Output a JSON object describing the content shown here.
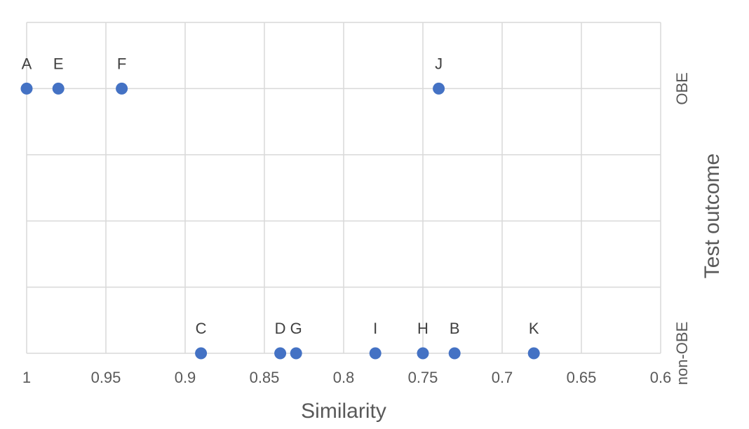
{
  "chart_data": {
    "type": "scatter",
    "title": "",
    "xlabel": "Similarity",
    "ylabel": "Test outcome",
    "xlim": [
      0.6,
      1.0
    ],
    "x_reversed": true,
    "x_ticks": [
      1.0,
      0.95,
      0.9,
      0.85,
      0.8,
      0.75,
      0.7,
      0.65,
      0.6
    ],
    "x_tick_labels": [
      "1",
      "0.95",
      "0.9",
      "0.85",
      "0.8",
      "0.75",
      "0.7",
      "0.65",
      "0.6"
    ],
    "y_categories": [
      "non-OBE",
      "OBE"
    ],
    "y_category_positions": [
      0,
      1
    ],
    "ylim": [
      0,
      1.25
    ],
    "y_gridlines": [
      0,
      0.25,
      0.5,
      0.75,
      1.0,
      1.25
    ],
    "grid": true,
    "legend": "none",
    "marker_color": "#4472C4",
    "grid_color": "#D9D9D9",
    "text_color": "#595959",
    "points": [
      {
        "label": "A",
        "x": 1.0,
        "outcome": "OBE"
      },
      {
        "label": "E",
        "x": 0.98,
        "outcome": "OBE"
      },
      {
        "label": "F",
        "x": 0.94,
        "outcome": "OBE"
      },
      {
        "label": "J",
        "x": 0.74,
        "outcome": "OBE"
      },
      {
        "label": "C",
        "x": 0.89,
        "outcome": "non-OBE"
      },
      {
        "label": "D",
        "x": 0.84,
        "outcome": "non-OBE"
      },
      {
        "label": "G",
        "x": 0.83,
        "outcome": "non-OBE"
      },
      {
        "label": "I",
        "x": 0.78,
        "outcome": "non-OBE"
      },
      {
        "label": "H",
        "x": 0.75,
        "outcome": "non-OBE"
      },
      {
        "label": "B",
        "x": 0.73,
        "outcome": "non-OBE"
      },
      {
        "label": "K",
        "x": 0.68,
        "outcome": "non-OBE"
      }
    ]
  }
}
